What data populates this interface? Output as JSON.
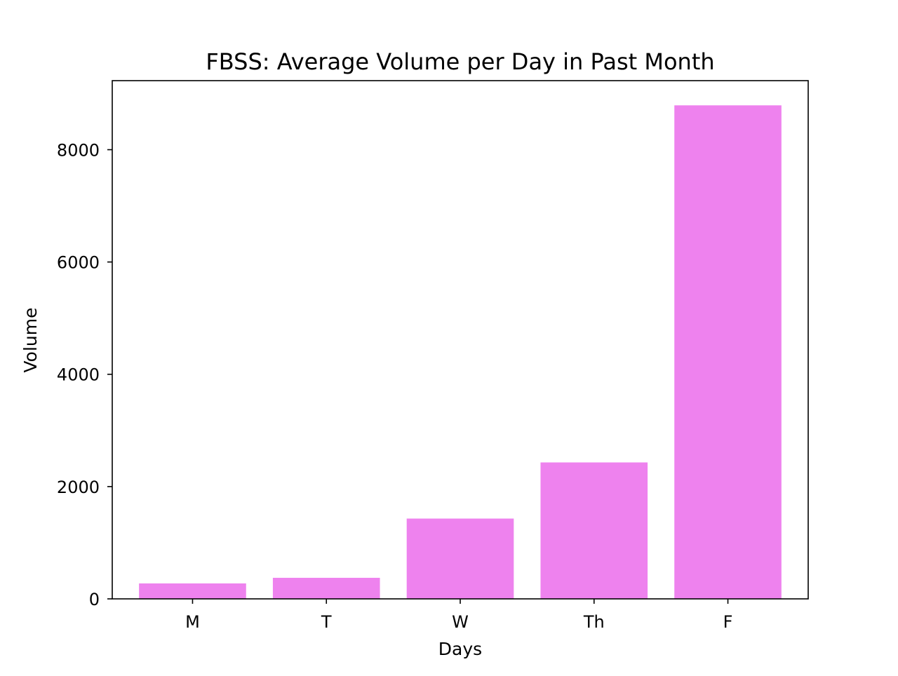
{
  "chart_data": {
    "type": "bar",
    "title": "FBSS: Average Volume per Day in Past Month",
    "xlabel": "Days",
    "ylabel": "Volume",
    "categories": [
      "M",
      "T",
      "W",
      "Th",
      "F"
    ],
    "values": [
      275,
      375,
      1430,
      2430,
      8790
    ],
    "ylim": [
      0,
      9230
    ],
    "yticks": [
      0,
      2000,
      4000,
      6000,
      8000
    ],
    "ytick_labels": [
      "0",
      "2000",
      "4000",
      "6000",
      "8000"
    ],
    "bar_color": "#ee82ee",
    "grid": false,
    "legend": "none"
  }
}
